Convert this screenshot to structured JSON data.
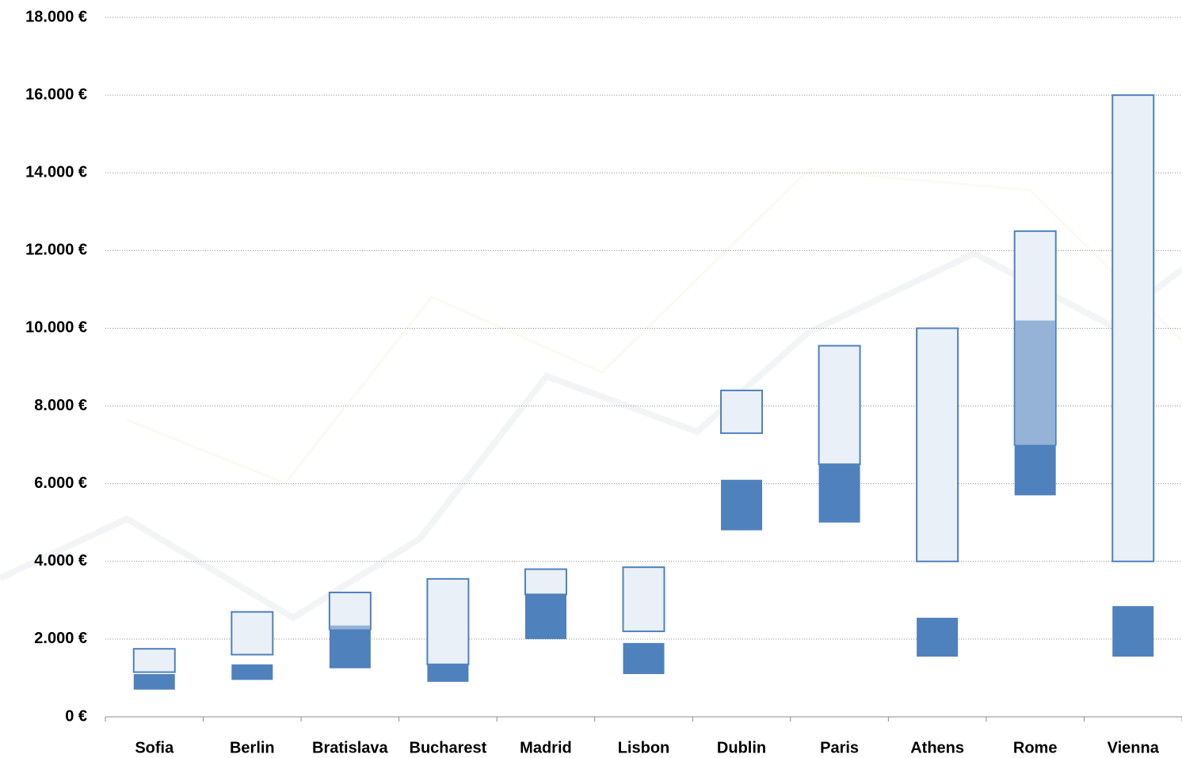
{
  "chart_data": {
    "type": "floating-range",
    "categories": [
      "Sofia",
      "Berlin",
      "Bratislava",
      "Bucharest",
      "Madrid",
      "Lisbon",
      "Dublin",
      "Paris",
      "Athens",
      "Rome",
      "Vienna"
    ],
    "series": [
      {
        "color": "#4f81bd",
        "style": "solid",
        "low": [
          700,
          950,
          1250,
          900,
          2000,
          1100,
          4800,
          5000,
          1550,
          5700,
          1550
        ],
        "high": [
          1100,
          1350,
          2350,
          1350,
          3150,
          1900,
          6100,
          6500,
          2550,
          10200,
          2850
        ]
      },
      {
        "color": "#eaf0f8",
        "stroke": "#4f81bd",
        "style": "outlined",
        "low": [
          1150,
          1600,
          2250,
          1350,
          3150,
          2200,
          7300,
          6500,
          4000,
          7000,
          4000
        ],
        "high": [
          1750,
          2700,
          3200,
          3550,
          3800,
          3850,
          8400,
          9550,
          10000,
          12500,
          16000
        ]
      }
    ],
    "overlap_color": "#95b3d7",
    "ylim": [
      0,
      18000
    ],
    "yticks": [
      {
        "value": 0,
        "label": "0 €"
      },
      {
        "value": 2000,
        "label": "2.000 €"
      },
      {
        "value": 4000,
        "label": "4.000 €"
      },
      {
        "value": 6000,
        "label": "6.000 €"
      },
      {
        "value": 8000,
        "label": "8.000 €"
      },
      {
        "value": 10000,
        "label": "10.000 €"
      },
      {
        "value": 12000,
        "label": "12.000 €"
      },
      {
        "value": 14000,
        "label": "14.000 €"
      },
      {
        "value": 16000,
        "label": "16.000 €"
      },
      {
        "value": 18000,
        "label": "18.000 €"
      }
    ],
    "grid": true
  }
}
